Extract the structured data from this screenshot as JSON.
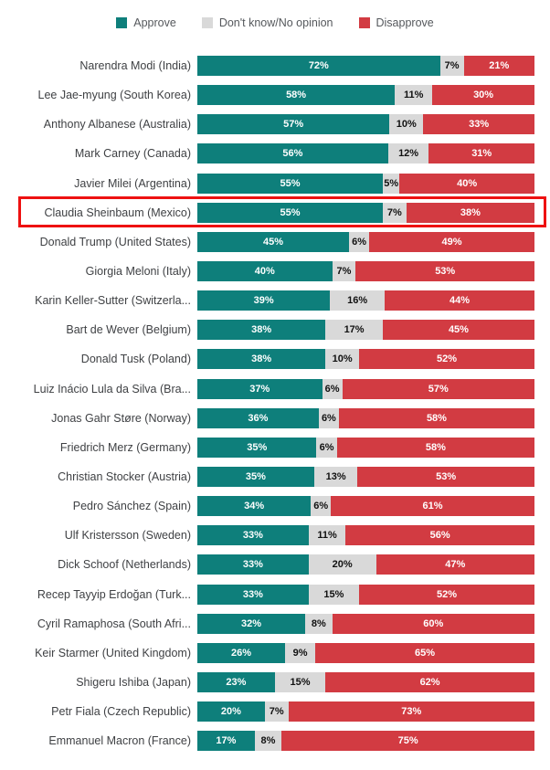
{
  "legend": [
    {
      "label": "Approve",
      "color": "#0e7f7b"
    },
    {
      "label": "Don't know/No opinion",
      "color": "#d9d9d9"
    },
    {
      "label": "Disapprove",
      "color": "#d23b42"
    }
  ],
  "chart_data": {
    "type": "bar",
    "orientation": "horizontal",
    "stacked": true,
    "title": "",
    "xlabel": "",
    "ylabel": "",
    "value_suffix": "%",
    "legend_position": "top",
    "grid": false,
    "categories": [
      "Narendra Modi (India)",
      "Lee Jae-myung (South Korea)",
      "Anthony Albanese (Australia)",
      "Mark Carney (Canada)",
      "Javier Milei (Argentina)",
      "Claudia Sheinbaum (Mexico)",
      "Donald Trump (United States)",
      "Giorgia Meloni (Italy)",
      "Karin Keller-Sutter (Switzerla...",
      "Bart de Wever (Belgium)",
      "Donald Tusk (Poland)",
      "Luiz Inácio Lula da Silva (Bra...",
      "Jonas Gahr Støre (Norway)",
      "Friedrich Merz (Germany)",
      "Christian Stocker (Austria)",
      "Pedro Sánchez (Spain)",
      "Ulf Kristersson (Sweden)",
      "Dick Schoof (Netherlands)",
      "Recep Tayyip Erdoğan (Turk...",
      "Cyril Ramaphosa (South Afri...",
      "Keir Starmer (United Kingdom)",
      "Shigeru Ishiba (Japan)",
      "Petr Fiala (Czech Republic)",
      "Emmanuel Macron (France)"
    ],
    "series": [
      {
        "name": "Approve",
        "color": "#0e7f7b",
        "text_color": "#ffffff",
        "values": [
          72,
          58,
          57,
          56,
          55,
          55,
          45,
          40,
          39,
          38,
          38,
          37,
          36,
          35,
          35,
          34,
          33,
          33,
          33,
          32,
          26,
          23,
          20,
          17
        ]
      },
      {
        "name": "Don't know/No opinion",
        "color": "#d9d9d9",
        "text_color": "#111111",
        "values": [
          7,
          11,
          10,
          12,
          5,
          7,
          6,
          7,
          16,
          17,
          10,
          6,
          6,
          6,
          13,
          6,
          11,
          20,
          15,
          8,
          9,
          15,
          7,
          8
        ]
      },
      {
        "name": "Disapprove",
        "color": "#d23b42",
        "text_color": "#ffffff",
        "values": [
          21,
          30,
          33,
          31,
          40,
          38,
          49,
          53,
          44,
          45,
          52,
          57,
          58,
          58,
          53,
          61,
          56,
          47,
          52,
          60,
          65,
          62,
          73,
          75
        ]
      }
    ],
    "highlight": {
      "category": "Claudia Sheinbaum (Mexico)",
      "border_color": "#ee1111",
      "border_width_px": 3
    }
  }
}
